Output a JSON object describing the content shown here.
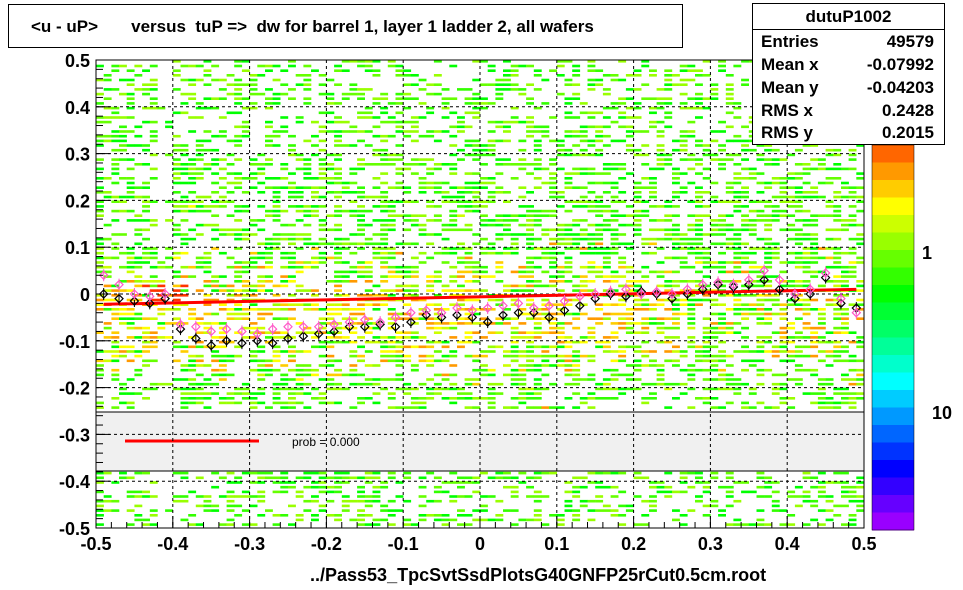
{
  "title": "<u - uP>       versus  tuP =>  dw for barrel 1, layer 1 ladder 2, all wafers",
  "stats": {
    "name": "dutuP1002",
    "rows": [
      {
        "label": "Entries",
        "value": "49579"
      },
      {
        "label": "Mean x",
        "value": "-0.07992"
      },
      {
        "label": "Mean y",
        "value": "-0.04203"
      },
      {
        "label": "RMS x",
        "value": "0.2428"
      },
      {
        "label": "RMS y",
        "value": "0.2015"
      }
    ]
  },
  "fit_legend": {
    "text": "prob = 0.000",
    "color": "#ff0000"
  },
  "palette_labels": [
    "1",
    "10"
  ],
  "x_axis_title": "../Pass53_TpcSvtSsdPlotsG40GNFP25rCut0.5cm.root",
  "colors": {
    "fit_line": "#ff0000",
    "profile_black": "#000000",
    "profile_pink": "#ff5ac8",
    "legend_band": "#f0f0f0"
  },
  "chart_data": {
    "type": "heatmap",
    "xlim": [
      -0.5,
      0.5
    ],
    "ylim": [
      -0.5,
      0.5
    ],
    "x_ticks": [
      "-0.5",
      "-0.4",
      "-0.3",
      "-0.2",
      "-0.1",
      "0",
      "0.1",
      "0.2",
      "0.3",
      "0.4",
      "0.5"
    ],
    "y_ticks": [
      "-0.5",
      "-0.4",
      "-0.3",
      "-0.2",
      "-0.1",
      "0",
      "0.1",
      "0.2",
      "0.3",
      "0.4",
      "0.5"
    ],
    "grid": true,
    "fit_line": {
      "x": [
        -0.49,
        0.49
      ],
      "y": [
        -0.022,
        0.01
      ]
    },
    "series": [
      {
        "x": [
          -0.49,
          -0.47,
          -0.45,
          -0.43,
          -0.41,
          -0.39,
          -0.37,
          -0.35,
          -0.33,
          -0.31,
          -0.29,
          -0.27,
          -0.25,
          -0.23,
          -0.21,
          -0.19,
          -0.17,
          -0.15,
          -0.13,
          -0.11,
          -0.09,
          -0.07,
          -0.05,
          -0.03,
          -0.01,
          0.01,
          0.03,
          0.05,
          0.07,
          0.09,
          0.11,
          0.13,
          0.15,
          0.17,
          0.19,
          0.21,
          0.23,
          0.25,
          0.27,
          0.29,
          0.31,
          0.33,
          0.35,
          0.37,
          0.39,
          0.41,
          0.43,
          0.45,
          0.47,
          0.49
        ],
        "y": [
          0.0,
          -0.01,
          -0.015,
          -0.02,
          -0.01,
          -0.075,
          -0.095,
          -0.11,
          -0.1,
          -0.105,
          -0.1,
          -0.105,
          -0.095,
          -0.09,
          -0.085,
          -0.08,
          -0.07,
          -0.07,
          -0.065,
          -0.07,
          -0.06,
          -0.045,
          -0.05,
          -0.045,
          -0.05,
          -0.06,
          -0.045,
          -0.04,
          -0.04,
          -0.05,
          -0.035,
          -0.025,
          -0.01,
          0.0,
          -0.005,
          0.005,
          0.0,
          -0.01,
          0.0,
          0.01,
          0.02,
          0.015,
          0.02,
          0.03,
          0.01,
          -0.01,
          0.0,
          0.035,
          -0.02,
          -0.03
        ]
      },
      {
        "x": [
          -0.49,
          -0.47,
          -0.45,
          -0.43,
          -0.41,
          -0.39,
          -0.37,
          -0.35,
          -0.33,
          -0.31,
          -0.29,
          -0.27,
          -0.25,
          -0.23,
          -0.21,
          -0.19,
          -0.17,
          -0.15,
          -0.13,
          -0.11,
          -0.09,
          -0.07,
          -0.05,
          -0.03,
          -0.01,
          0.01,
          0.03,
          0.05,
          0.07,
          0.09,
          0.11,
          0.13,
          0.15,
          0.17,
          0.19,
          0.21,
          0.23,
          0.25,
          0.27,
          0.29,
          0.31,
          0.33,
          0.35,
          0.37,
          0.39,
          0.41,
          0.43,
          0.45,
          0.47,
          0.49
        ],
        "y": [
          0.04,
          0.02,
          0.0,
          -0.005,
          0.0,
          -0.065,
          -0.07,
          -0.08,
          -0.075,
          -0.08,
          -0.085,
          -0.075,
          -0.07,
          -0.07,
          -0.07,
          -0.065,
          -0.06,
          -0.055,
          -0.06,
          -0.05,
          -0.04,
          -0.035,
          -0.04,
          -0.03,
          -0.035,
          -0.03,
          -0.025,
          -0.02,
          -0.03,
          -0.025,
          -0.015,
          -0.005,
          0.0,
          0.005,
          0.01,
          0.0,
          0.005,
          0.0,
          0.01,
          0.02,
          0.025,
          0.02,
          0.03,
          0.05,
          0.03,
          0.0,
          0.01,
          0.045,
          -0.01,
          -0.04
        ]
      }
    ]
  }
}
